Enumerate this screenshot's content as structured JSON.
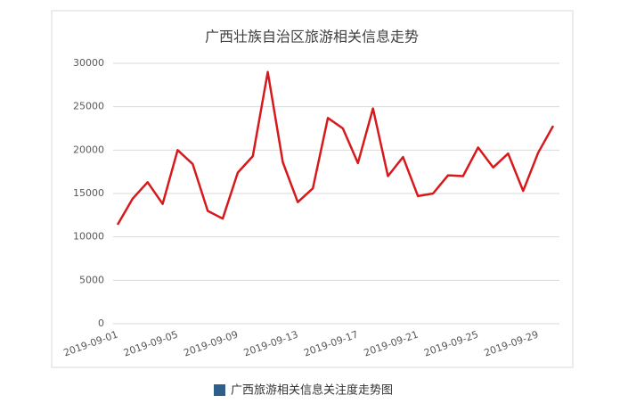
{
  "chart_data": {
    "type": "line",
    "title": "广西壮族自治区旅游相关信息走势",
    "categories": [
      "2019-09-01",
      null,
      null,
      null,
      "2019-09-05",
      null,
      null,
      null,
      "2019-09-09",
      null,
      null,
      null,
      "2019-09-13",
      null,
      null,
      null,
      "2019-09-17",
      null,
      null,
      null,
      "2019-09-21",
      null,
      null,
      null,
      "2019-09-25",
      null,
      null,
      null,
      "2019-09-29",
      null
    ],
    "series": [
      {
        "color": "#d7191c",
        "values": [
          11400,
          14400,
          16300,
          13800,
          20000,
          18400,
          13000,
          12100,
          17400,
          19300,
          29000,
          18600,
          14000,
          15600,
          23700,
          22500,
          18500,
          24800,
          17000,
          19200,
          14700,
          15000,
          17100,
          17000,
          20300,
          18000,
          19600,
          15300,
          19700,
          22800
        ]
      }
    ],
    "ylim": [
      0,
      30000
    ],
    "yticks": [
      0,
      5000,
      10000,
      15000,
      20000,
      25000,
      30000
    ],
    "grid": true
  },
  "caption": "广西旅游相关信息关注度走势图"
}
